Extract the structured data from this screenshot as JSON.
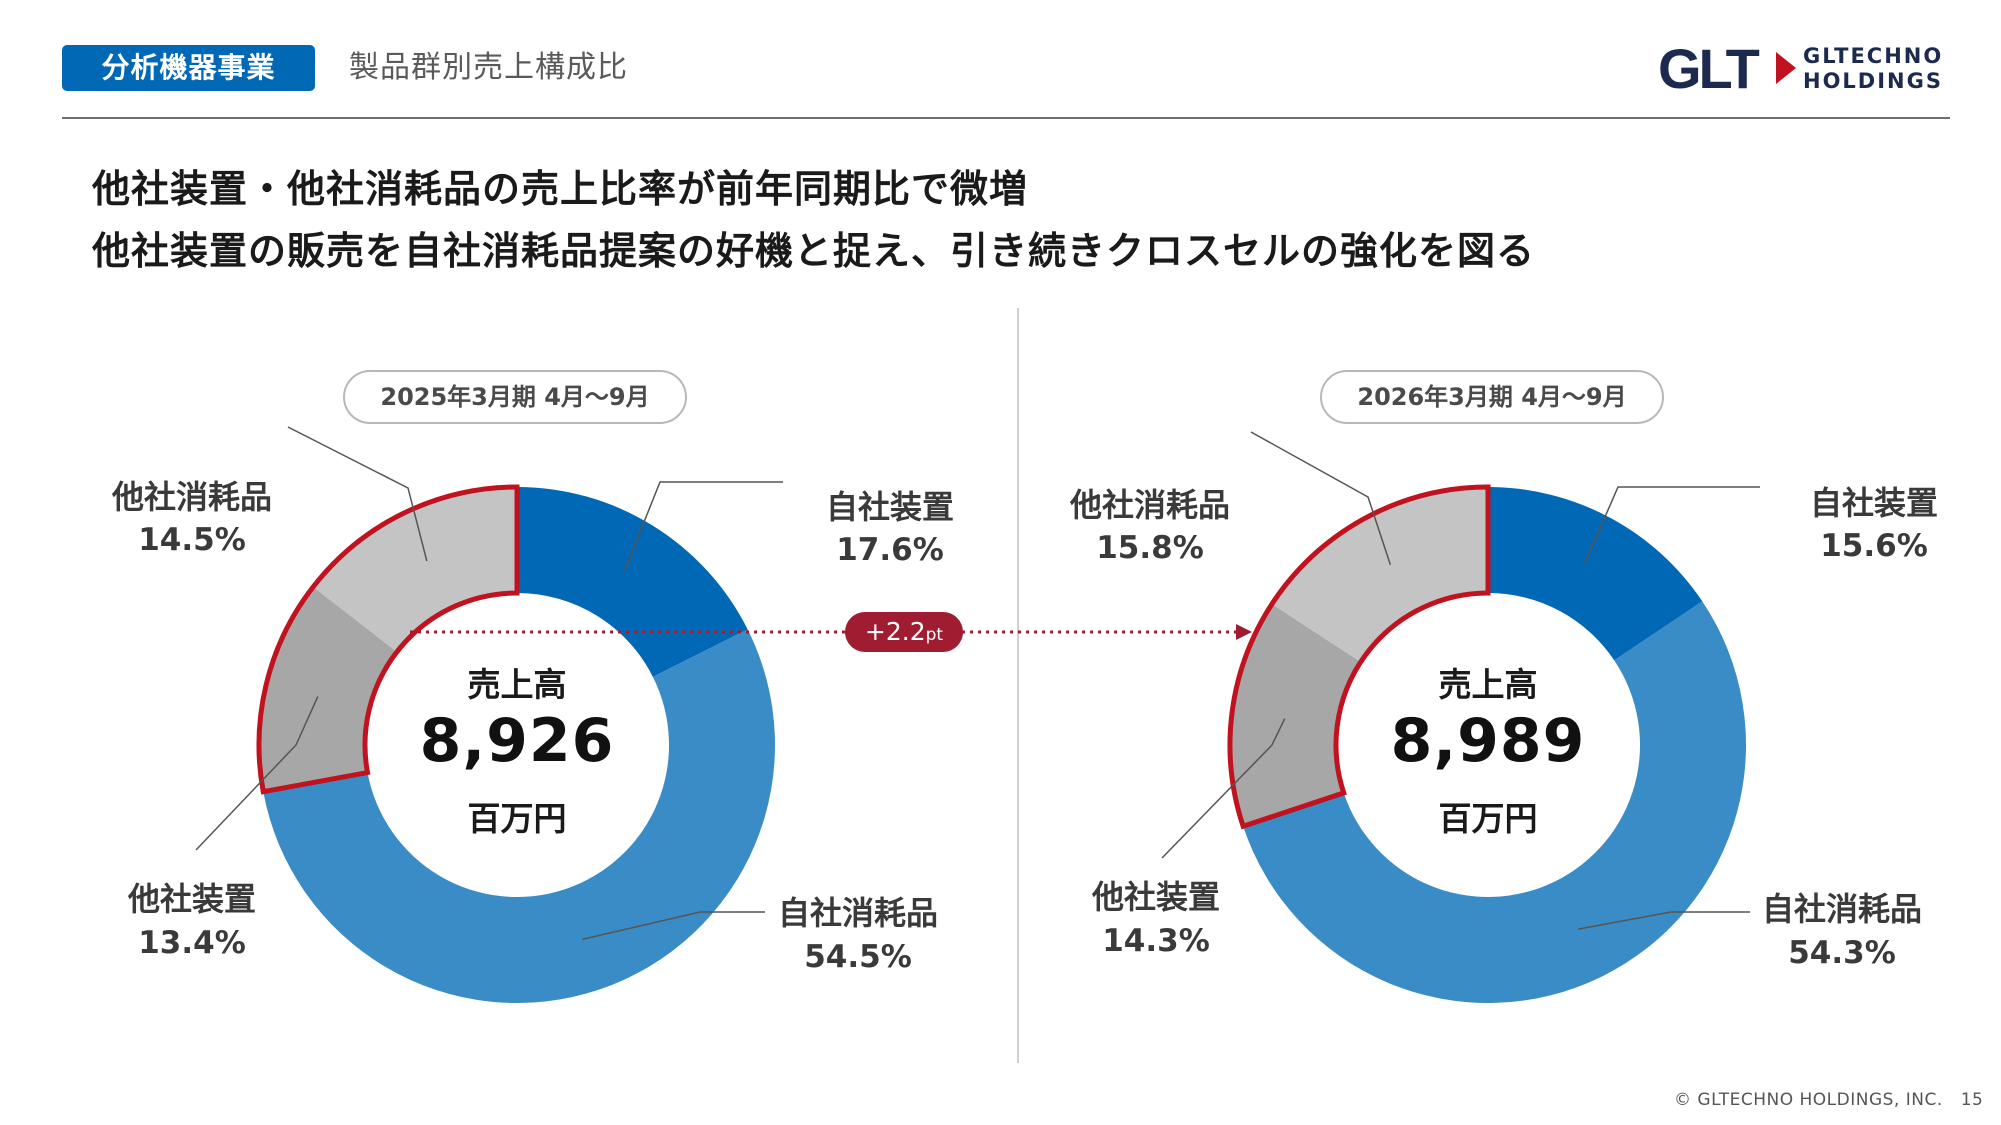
{
  "header": {
    "segment": "分析機器事業",
    "subtitle": "製品群別売上構成比",
    "logo_mark": "GLT",
    "logo_line1": "GLTECHNO",
    "logo_line2": "HOLDINGS"
  },
  "headline": {
    "line1": "他社装置・他社消耗品の売上比率が前年同期比で微増",
    "line2": "他社装置の販売を自社消耗品提案の好機と捉え、引き続きクロスセルの強化を図る"
  },
  "colors": {
    "own_equipment": "#0068b4",
    "own_consumables": "#3a8cc6",
    "other_equipment": "#a7a7a7",
    "other_consumables": "#c4c4c4",
    "highlight": "#c0121f",
    "delta": "#a01c30"
  },
  "chart_data": [
    {
      "type": "pie",
      "period": "2025年3月期 4月～9月",
      "center_label": "売上高",
      "total": "8,926",
      "unit": "百万円",
      "slices": [
        {
          "name": "自社装置",
          "value": 17.6,
          "label": "17.6%"
        },
        {
          "name": "自社消耗品",
          "value": 54.5,
          "label": "54.5%"
        },
        {
          "name": "他社装置",
          "value": 13.4,
          "label": "13.4%"
        },
        {
          "name": "他社消耗品",
          "value": 14.5,
          "label": "14.5%"
        }
      ]
    },
    {
      "type": "pie",
      "period": "2026年3月期 4月～9月",
      "center_label": "売上高",
      "total": "8,989",
      "unit": "百万円",
      "slices": [
        {
          "name": "自社装置",
          "value": 15.6,
          "label": "15.6%"
        },
        {
          "name": "自社消耗品",
          "value": 54.3,
          "label": "54.3%"
        },
        {
          "name": "他社装置",
          "value": 14.3,
          "label": "14.3%"
        },
        {
          "name": "他社消耗品",
          "value": 15.8,
          "label": "15.8%"
        }
      ]
    }
  ],
  "delta": {
    "value": "+2.2",
    "unit": "pt"
  },
  "footer": {
    "copyright": "© GLTECHNO HOLDINGS, INC.",
    "page": "15"
  }
}
